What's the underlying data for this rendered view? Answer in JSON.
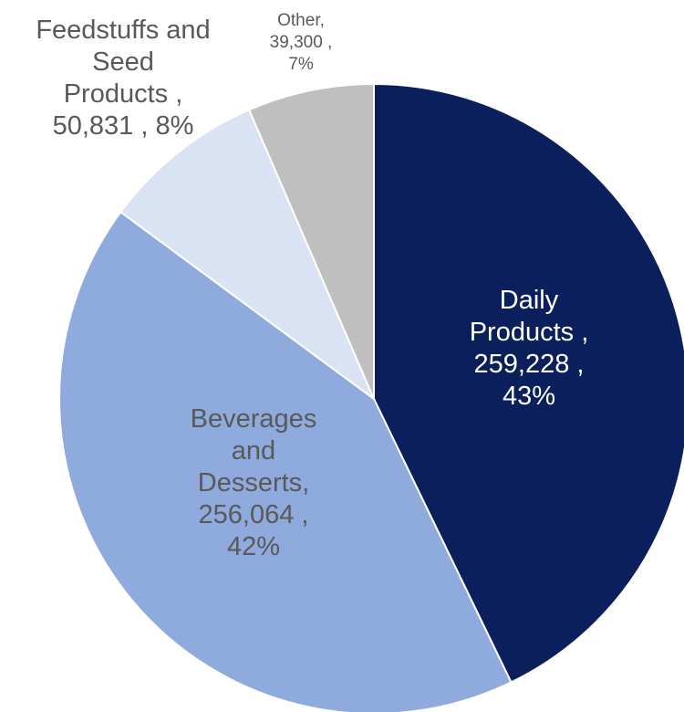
{
  "chart_data": {
    "type": "pie",
    "title": "",
    "slices": [
      {
        "name": "Daily Products",
        "value": 259228,
        "percent": 43,
        "color": "#0b1f5c",
        "label_lines": [
          "Daily",
          "Products ,",
          "259,228 ,",
          "43%"
        ],
        "label_color": "#ffffff"
      },
      {
        "name": "Beverages and Desserts",
        "value": 256064,
        "percent": 42,
        "color": "#8faadc",
        "label_lines": [
          "Beverages",
          "and",
          "Desserts,",
          "256,064 ,",
          "42%"
        ],
        "label_color": "#595959"
      },
      {
        "name": "Feedstuffs and Seed Products",
        "value": 50831,
        "percent": 8,
        "color": "#dae3f3",
        "label_lines": [
          "Feedstuffs and",
          "Seed",
          "Products ,",
          "50,831 , 8%"
        ],
        "label_color": "#595959"
      },
      {
        "name": "Other",
        "value": 39300,
        "percent": 7,
        "color": "#bfbfbf",
        "label_lines": [
          "Other,",
          "39,300 ,",
          "7%"
        ],
        "label_color": "#595959"
      }
    ]
  }
}
